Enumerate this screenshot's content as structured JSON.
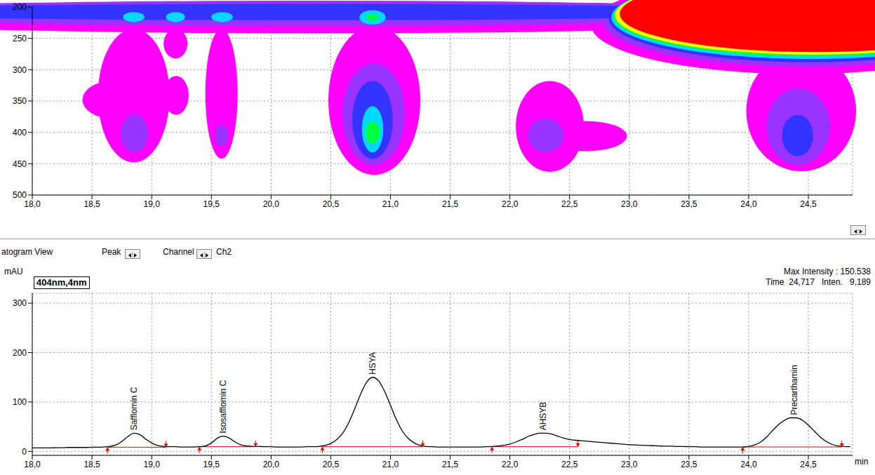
{
  "toolbar": {
    "view": "atogram View",
    "peak": "Peak",
    "channel": "Channel",
    "channel_value": "Ch2"
  },
  "chart_data": [
    {
      "type": "contour",
      "xlim": [
        18,
        24.87
      ],
      "xticks": [
        {
          "value": 18,
          "label": "18,0"
        },
        {
          "value": 18.5,
          "label": "18,5"
        },
        {
          "value": 19,
          "label": "19,0"
        },
        {
          "value": 19.5,
          "label": "19,5"
        },
        {
          "value": 20,
          "label": "20,0"
        },
        {
          "value": 20.5,
          "label": "20,5"
        },
        {
          "value": 21,
          "label": "21,0"
        },
        {
          "value": 21.5,
          "label": "21,5"
        },
        {
          "value": 22,
          "label": "22,0"
        },
        {
          "value": 22.5,
          "label": "22,5"
        },
        {
          "value": 23,
          "label": "23,0"
        },
        {
          "value": 23.5,
          "label": "23,5"
        },
        {
          "value": 24,
          "label": "24,0"
        },
        {
          "value": 24.5,
          "label": "24,5"
        }
      ],
      "ylim": [
        200,
        500
      ],
      "yticks": [
        200,
        250,
        300,
        350,
        400,
        450,
        500
      ],
      "grid": true,
      "colors": [
        "#ff00ff",
        "#9933ff",
        "#3333ff",
        "#00d8ff",
        "#00ff40",
        "#ffff00",
        "#ff0000"
      ],
      "regions": [
        {
          "x": [
            16,
            24.8
          ],
          "y": [
            190,
            242
          ],
          "level": 0
        },
        {
          "x": [
            18.55,
            19.15
          ],
          "y": [
            235,
            448
          ],
          "level": 0
        },
        {
          "x": [
            18.42,
            18.92
          ],
          "y": [
            318,
            378
          ],
          "level": 0
        },
        {
          "x": [
            19.1,
            19.3
          ],
          "y": [
            235,
            282
          ],
          "level": 0
        },
        {
          "x": [
            19.1,
            19.31
          ],
          "y": [
            310,
            372
          ],
          "level": 0
        },
        {
          "x": [
            19.45,
            19.72
          ],
          "y": [
            235,
            442
          ],
          "level": 0
        },
        {
          "x": [
            20.48,
            21.25
          ],
          "y": [
            230,
            468
          ],
          "level": 0
        },
        {
          "x": [
            22.05,
            22.62
          ],
          "y": [
            318,
            463
          ],
          "level": 0
        },
        {
          "x": [
            22.3,
            22.98
          ],
          "y": [
            382,
            430
          ],
          "level": 0
        },
        {
          "x": [
            22.68,
            26.2
          ],
          "y": [
            150,
            307
          ],
          "level": 0
        },
        {
          "x": [
            23.98,
            24.9
          ],
          "y": [
            270,
            462
          ],
          "level": 0
        },
        {
          "x": [
            16,
            24.6
          ],
          "y": [
            190,
            230
          ],
          "level": 1
        },
        {
          "x": [
            18.74,
            18.97
          ],
          "y": [
            372,
            432
          ],
          "level": 1
        },
        {
          "x": [
            19.53,
            19.64
          ],
          "y": [
            388,
            422
          ],
          "level": 1
        },
        {
          "x": [
            20.6,
            21.12
          ],
          "y": [
            290,
            452
          ],
          "level": 1
        },
        {
          "x": [
            22.15,
            22.45
          ],
          "y": [
            378,
            432
          ],
          "level": 1
        },
        {
          "x": [
            22.78,
            26.2
          ],
          "y": [
            150,
            295
          ],
          "level": 1
        },
        {
          "x": [
            24.15,
            24.68
          ],
          "y": [
            330,
            452
          ],
          "level": 1
        },
        {
          "x": [
            16.2,
            24.4
          ],
          "y": [
            195,
            221
          ],
          "level": 2
        },
        {
          "x": [
            20.68,
            21.02
          ],
          "y": [
            318,
            442
          ],
          "level": 2
        },
        {
          "x": [
            22.83,
            26.2
          ],
          "y": [
            150,
            288
          ],
          "level": 2
        },
        {
          "x": [
            24.28,
            24.54
          ],
          "y": [
            372,
            438
          ],
          "level": 2
        },
        {
          "x": [
            18.76,
            18.94
          ],
          "y": [
            208,
            224
          ],
          "level": 3
        },
        {
          "x": [
            19.12,
            19.28
          ],
          "y": [
            208,
            224
          ],
          "level": 3
        },
        {
          "x": [
            19.5,
            19.68
          ],
          "y": [
            208,
            224
          ],
          "level": 3
        },
        {
          "x": [
            20.74,
            20.96
          ],
          "y": [
            205,
            228
          ],
          "level": 3
        },
        {
          "x": [
            20.76,
            20.94
          ],
          "y": [
            358,
            432
          ],
          "level": 3
        },
        {
          "x": [
            22.85,
            26.2
          ],
          "y": [
            150,
            283
          ],
          "level": 3
        },
        {
          "x": [
            20.79,
            20.91
          ],
          "y": [
            383,
            418
          ],
          "level": 4
        },
        {
          "x": [
            20.8,
            20.9
          ],
          "y": [
            211,
            222
          ],
          "level": 4
        },
        {
          "x": [
            22.87,
            26.2
          ],
          "y": [
            150,
            279
          ],
          "level": 4
        },
        {
          "x": [
            22.88,
            26.2
          ],
          "y": [
            150,
            276
          ],
          "level": 5
        },
        {
          "x": [
            22.92,
            26.2
          ],
          "y": [
            150,
            272
          ],
          "level": 6
        }
      ]
    },
    {
      "type": "line",
      "title": "404nm,4nm",
      "y_label": "mAU",
      "x_label": "min",
      "annotations": {
        "max_intensity": "Max Intensity : 150.538",
        "time": "Time",
        "time_value": "24,717",
        "intensity": "Inten.",
        "intensity_value": "9,189"
      },
      "color": "#000000",
      "xlim": [
        18,
        24.87
      ],
      "xticks": [
        {
          "value": 18,
          "label": "18,0"
        },
        {
          "value": 18.5,
          "label": "18,5"
        },
        {
          "value": 19,
          "label": "19,0"
        },
        {
          "value": 19.5,
          "label": "19,5"
        },
        {
          "value": 20,
          "label": "20,0"
        },
        {
          "value": 20.5,
          "label": "20,5"
        },
        {
          "value": 21,
          "label": "21,0"
        },
        {
          "value": 21.5,
          "label": "21,5"
        },
        {
          "value": 22,
          "label": "22,0"
        },
        {
          "value": 22.5,
          "label": "22,5"
        },
        {
          "value": 23,
          "label": "23,0"
        },
        {
          "value": 23.5,
          "label": "23,5"
        },
        {
          "value": 24,
          "label": "24,0"
        },
        {
          "value": 24.5,
          "label": "24,5"
        }
      ],
      "ylim": [
        -8,
        320
      ],
      "yticks": [
        0,
        100,
        200,
        300
      ],
      "grid": true,
      "x": [
        18,
        18.05,
        18.1,
        18.15,
        18.2,
        18.25,
        18.3,
        18.35,
        18.4,
        18.45,
        18.5,
        18.55,
        18.6,
        18.65,
        18.7,
        18.75,
        18.8,
        18.85,
        18.9,
        18.95,
        19,
        19.05,
        19.1,
        19.15,
        19.2,
        19.25,
        19.3,
        19.35,
        19.4,
        19.45,
        19.5,
        19.55,
        19.6,
        19.65,
        19.7,
        19.75,
        19.8,
        19.85,
        19.9,
        19.95,
        20,
        20.05,
        20.1,
        20.15,
        20.2,
        20.25,
        20.3,
        20.35,
        20.4,
        20.45,
        20.5,
        20.55,
        20.6,
        20.65,
        20.7,
        20.75,
        20.8,
        20.85,
        20.9,
        20.95,
        21,
        21.05,
        21.1,
        21.15,
        21.2,
        21.25,
        21.3,
        21.35,
        21.4,
        21.45,
        21.5,
        21.55,
        21.6,
        21.65,
        21.7,
        21.75,
        21.8,
        21.85,
        21.9,
        21.95,
        22,
        22.05,
        22.1,
        22.15,
        22.2,
        22.25,
        22.3,
        22.35,
        22.4,
        22.45,
        22.5,
        22.55,
        22.6,
        22.65,
        22.7,
        22.75,
        22.8,
        22.85,
        22.9,
        22.95,
        23,
        23.05,
        23.1,
        23.15,
        23.2,
        23.25,
        23.3,
        23.35,
        23.4,
        23.45,
        23.5,
        23.55,
        23.6,
        23.65,
        23.7,
        23.75,
        23.8,
        23.85,
        23.9,
        23.95,
        24,
        24.05,
        24.1,
        24.15,
        24.2,
        24.25,
        24.3,
        24.35,
        24.4,
        24.45,
        24.5,
        24.55,
        24.6,
        24.65,
        24.7,
        24.75,
        24.8,
        24.85
      ],
      "values": [
        7,
        7,
        7,
        7,
        7.5,
        7.5,
        8,
        8,
        8,
        8,
        8.5,
        8.5,
        9,
        10,
        13,
        20,
        30,
        37,
        34,
        25,
        17,
        12,
        10,
        9.5,
        9.5,
        9,
        9,
        9,
        9.5,
        11,
        17,
        27,
        31,
        27,
        19,
        13,
        11,
        10,
        10,
        9.5,
        9.5,
        9,
        9,
        9,
        9,
        9,
        9.5,
        9.5,
        10,
        12,
        16,
        24,
        37,
        58,
        86,
        116,
        140,
        150,
        143,
        122,
        93,
        64,
        41,
        26,
        17,
        12,
        10,
        9.5,
        9,
        9,
        9,
        9,
        9,
        9,
        9,
        9,
        9.5,
        10,
        11,
        12.5,
        15,
        19,
        24,
        30,
        34,
        37,
        37,
        35,
        31,
        27,
        24,
        22.5,
        21.5,
        20.5,
        19.5,
        18.5,
        17.5,
        16.5,
        15.5,
        14.5,
        13.5,
        13,
        12.5,
        12,
        11.5,
        11,
        10.5,
        10.5,
        10,
        10,
        9.5,
        9.5,
        9,
        9,
        9,
        9,
        9,
        9,
        9,
        9,
        10,
        13,
        19,
        29,
        42,
        54,
        63,
        68,
        68,
        63,
        53,
        41,
        29,
        20,
        14,
        11,
        10,
        9.5
      ],
      "peaks": [
        {
          "name": "Safflomin C",
          "time": 18.85,
          "height": 37,
          "start": 18.63,
          "end": 19.12,
          "level": 8.5
        },
        {
          "name": "Isosafflomin C",
          "time": 19.6,
          "height": 31,
          "start": 19.4,
          "end": 19.87,
          "level": 9.5
        },
        {
          "name": "HSYA",
          "time": 20.85,
          "height": 150,
          "start": 20.43,
          "end": 21.27,
          "level": 9.5
        },
        {
          "name": "AHSYB",
          "time": 22.28,
          "height": 37,
          "start": 21.85,
          "end": 22.57,
          "level": 9.5
        },
        {
          "name": "Precarthamin",
          "time": 24.38,
          "height": 68,
          "start": 23.95,
          "end": 24.78,
          "level": 9
        }
      ]
    }
  ]
}
